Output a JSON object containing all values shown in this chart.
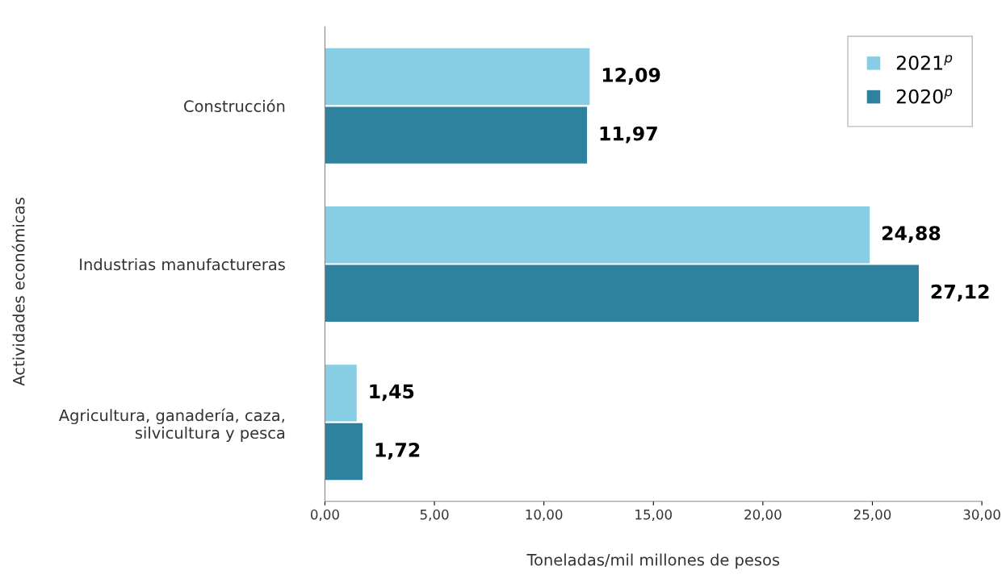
{
  "chart_data": {
    "type": "bar",
    "orientation": "horizontal",
    "xlabel": "Toneladas/mil millones de pesos",
    "ylabel": "Actividades económicas",
    "categories": [
      "Construcción",
      "Industrias manufactureras",
      "Agricultura, ganadería, caza,\nsilvicultura y pesca"
    ],
    "series": [
      {
        "name": "2021$^{p}$",
        "color": "#87cee4",
        "values": [
          12.09,
          24.88,
          1.45
        ],
        "value_labels": [
          "12,09",
          "24,88",
          "1,45"
        ]
      },
      {
        "name": "2020$^{p}$",
        "color": "#2e829e",
        "values": [
          11.97,
          27.12,
          1.72
        ],
        "value_labels": [
          "11,97",
          "27,12",
          "1,72"
        ]
      }
    ],
    "xlim": [
      0,
      30
    ],
    "xticks": [
      {
        "value": 0,
        "label": "0,00"
      },
      {
        "value": 5,
        "label": "5,00"
      },
      {
        "value": 10,
        "label": "10,00"
      },
      {
        "value": 15,
        "label": "15,00"
      },
      {
        "value": 20,
        "label": "20,00"
      },
      {
        "value": 25,
        "label": "25,00"
      },
      {
        "value": 30,
        "label": "30,00"
      }
    ],
    "grid": false,
    "legend": "top right"
  }
}
